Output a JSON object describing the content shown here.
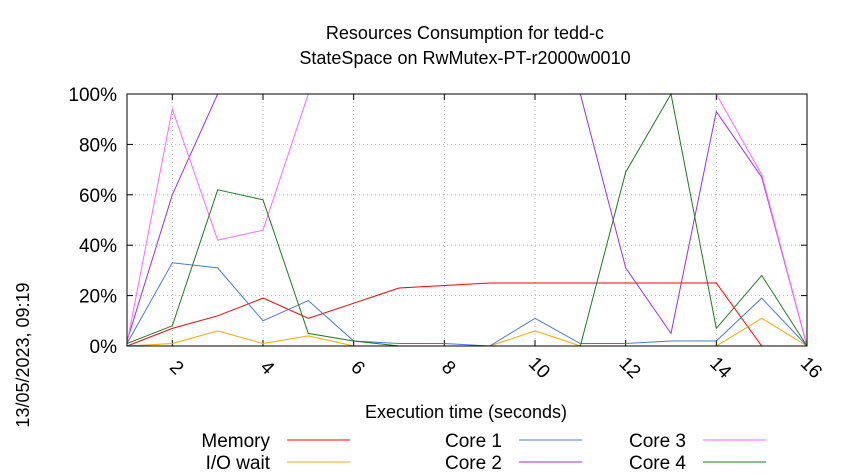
{
  "chart_data": {
    "type": "line",
    "title": [
      "Resources Consumption for tedd-c",
      "StateSpace on RwMutex-PT-r2000w0010"
    ],
    "xlabel": "Execution time (seconds)",
    "ylabel": "",
    "side_label": "13/05/2023, 09:19",
    "xlim": [
      1,
      16
    ],
    "ylim": [
      0,
      100
    ],
    "x_ticks": [
      2,
      4,
      6,
      8,
      10,
      12,
      14,
      16
    ],
    "y_ticks": [
      0,
      20,
      40,
      60,
      80,
      100
    ],
    "y_tick_suffix": "%",
    "grid": true,
    "legend_position": "bottom",
    "x": [
      1,
      2,
      3,
      4,
      5,
      6,
      7,
      8,
      9,
      10,
      11,
      12,
      13,
      14,
      15,
      16
    ],
    "series": [
      {
        "name": "Memory",
        "color": "#ff0000",
        "values": [
          0,
          7,
          12,
          19,
          11,
          17,
          23,
          24,
          25,
          25,
          25,
          25,
          25,
          25,
          0,
          0
        ]
      },
      {
        "name": "I/O wait",
        "color": "#ffa500",
        "values": [
          0,
          1,
          6,
          1,
          4,
          0,
          0,
          0,
          0,
          6,
          0,
          0,
          0,
          0,
          11,
          0
        ]
      },
      {
        "name": "Core 1",
        "color": "#4a78d0",
        "values": [
          1,
          33,
          31,
          10,
          18,
          2,
          1,
          1,
          0,
          11,
          1,
          1,
          2,
          2,
          19,
          0
        ]
      },
      {
        "name": "Core 2",
        "color": "#9b30e0",
        "values": [
          2,
          60,
          100,
          100,
          100,
          100,
          100,
          100,
          100,
          100,
          100,
          31,
          5,
          93,
          67,
          0
        ]
      },
      {
        "name": "Core 3",
        "color": "#ff66ff",
        "values": [
          1,
          94,
          42,
          46,
          100,
          100,
          100,
          100,
          100,
          100,
          100,
          100,
          100,
          100,
          68,
          0
        ]
      },
      {
        "name": "Core 4",
        "color": "#1f7a1f",
        "values": [
          1,
          8,
          62,
          58,
          5,
          2,
          0,
          0,
          0,
          0,
          0,
          69,
          100,
          7,
          28,
          0
        ]
      }
    ]
  }
}
